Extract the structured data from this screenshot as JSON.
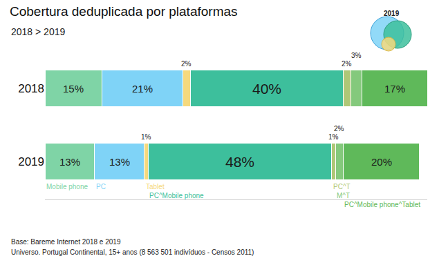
{
  "chart_data": {
    "type": "bar",
    "title": "Cobertura deduplicada por plataformas",
    "subtitle": "2018 > 2019",
    "icon_label": "2019",
    "footnotes": [
      "Base: Bareme Internet 2018 e 2019",
      "Universo. Portugal Continental, 15+ anos (8 563 501 indivíduos - Censos 2011)"
    ],
    "categories": [
      "2018",
      "2019"
    ],
    "orientation": "horizontal",
    "stacked": true,
    "data_labels": true,
    "tick_labels": "y",
    "grid": false,
    "xlim": [
      0,
      100
    ],
    "series": [
      {
        "name": "Mobile phone",
        "color": "#7fd4a6",
        "values": [
          15,
          13
        ],
        "value_labels": [
          "15%",
          "13%"
        ]
      },
      {
        "name": "PC",
        "color": "#7fd3f7",
        "values": [
          21,
          13
        ],
        "value_labels": [
          "21%",
          "13%"
        ]
      },
      {
        "name": "Tablet",
        "color": "#f5d97e",
        "values": [
          2,
          1
        ],
        "value_labels": [
          "2%",
          "1%"
        ]
      },
      {
        "name": "PC^Mobile phone",
        "color": "#3dbf9c",
        "values": [
          40,
          48
        ],
        "value_labels": [
          "40%",
          "48%"
        ]
      },
      {
        "name": "PC^T",
        "color": "#afc777",
        "values": [
          2,
          1
        ],
        "value_labels": [
          "2%",
          "1%"
        ]
      },
      {
        "name": "M^T",
        "color": "#84c97c",
        "values": [
          3,
          2
        ],
        "value_labels": [
          "3%",
          "2%"
        ]
      },
      {
        "name": "PC^Mobile phone^Tablet",
        "color": "#5fb95a",
        "values": [
          17,
          20
        ],
        "value_labels": [
          "17%",
          "20%"
        ]
      }
    ]
  }
}
